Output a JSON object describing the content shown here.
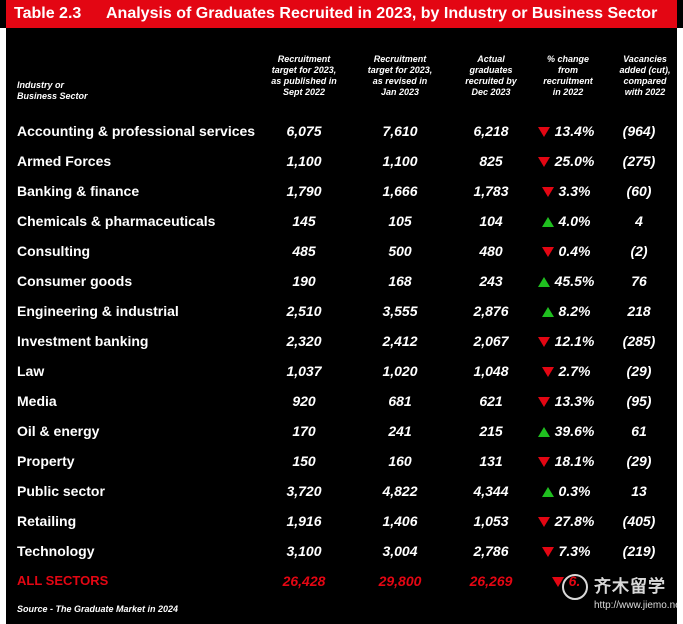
{
  "table": {
    "number": "Table 2.3",
    "title": "Analysis of Graduates Recruited in 2023, by Industry or Business Sector"
  },
  "headers": {
    "sector": "Industry or\nBusiness Sector",
    "target_published": "Recruitment\ntarget for 2023,\nas published in\nSept 2022",
    "target_revised": "Recruitment\ntarget for 2023,\nas revised in\nJan 2023",
    "actual": "Actual\ngraduates\nrecruited by\nDec 2023",
    "pct_change": "% change\nfrom\nrecruitment\nin 2022",
    "vacancies": "Vacancies\nadded (cut),\ncompared\nwith 2022"
  },
  "rows": [
    {
      "sector": "Accounting & professional services",
      "published": "6,075",
      "revised": "7,610",
      "actual": "6,218",
      "direction": "down",
      "change": "13.4%",
      "vacancies": "(964)"
    },
    {
      "sector": "Armed Forces",
      "published": "1,100",
      "revised": "1,100",
      "actual": "825",
      "direction": "down",
      "change": "25.0%",
      "vacancies": "(275)"
    },
    {
      "sector": "Banking & finance",
      "published": "1,790",
      "revised": "1,666",
      "actual": "1,783",
      "direction": "down",
      "change": "3.3%",
      "vacancies": "(60)"
    },
    {
      "sector": "Chemicals & pharmaceuticals",
      "published": "145",
      "revised": "105",
      "actual": "104",
      "direction": "up",
      "change": "4.0%",
      "vacancies": "4"
    },
    {
      "sector": "Consulting",
      "published": "485",
      "revised": "500",
      "actual": "480",
      "direction": "down",
      "change": "0.4%",
      "vacancies": "(2)"
    },
    {
      "sector": "Consumer goods",
      "published": "190",
      "revised": "168",
      "actual": "243",
      "direction": "up",
      "change": "45.5%",
      "vacancies": "76"
    },
    {
      "sector": "Engineering & industrial",
      "published": "2,510",
      "revised": "3,555",
      "actual": "2,876",
      "direction": "up",
      "change": "8.2%",
      "vacancies": "218"
    },
    {
      "sector": "Investment banking",
      "published": "2,320",
      "revised": "2,412",
      "actual": "2,067",
      "direction": "down",
      "change": "12.1%",
      "vacancies": "(285)"
    },
    {
      "sector": "Law",
      "published": "1,037",
      "revised": "1,020",
      "actual": "1,048",
      "direction": "down",
      "change": "2.7%",
      "vacancies": "(29)"
    },
    {
      "sector": "Media",
      "published": "920",
      "revised": "681",
      "actual": "621",
      "direction": "down",
      "change": "13.3%",
      "vacancies": "(95)"
    },
    {
      "sector": "Oil & energy",
      "published": "170",
      "revised": "241",
      "actual": "215",
      "direction": "up",
      "change": "39.6%",
      "vacancies": "61"
    },
    {
      "sector": "Property",
      "published": "150",
      "revised": "160",
      "actual": "131",
      "direction": "down",
      "change": "18.1%",
      "vacancies": "(29)"
    },
    {
      "sector": "Public sector",
      "published": "3,720",
      "revised": "4,822",
      "actual": "4,344",
      "direction": "up",
      "change": "0.3%",
      "vacancies": "13"
    },
    {
      "sector": "Retailing",
      "published": "1,916",
      "revised": "1,406",
      "actual": "1,053",
      "direction": "down",
      "change": "27.8%",
      "vacancies": "(405)"
    },
    {
      "sector": "Technology",
      "published": "3,100",
      "revised": "3,004",
      "actual": "2,786",
      "direction": "down",
      "change": "7.3%",
      "vacancies": "(219)"
    }
  ],
  "total": {
    "sector": "ALL SECTORS",
    "published": "26,428",
    "revised": "29,800",
    "actual": "26,269",
    "direction": "down",
    "change": "6.",
    "vacancies": ""
  },
  "source": "Source - The Graduate Market in 2024",
  "watermark": {
    "name": "齐木留学",
    "url": "http://www.jiemo.net"
  },
  "colors": {
    "accent_red": "#e30613",
    "up_green": "#1fbf1f",
    "background": "#000000"
  }
}
